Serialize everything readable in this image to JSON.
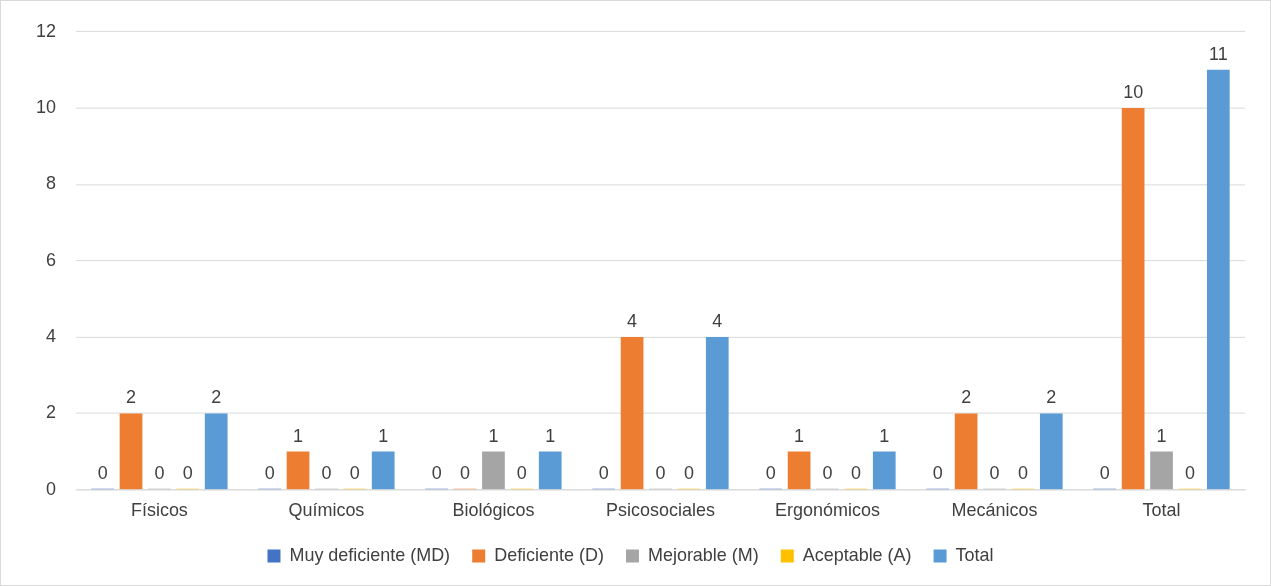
{
  "chart_data": {
    "type": "bar",
    "categories": [
      "Físicos",
      "Químicos",
      "Biológicos",
      "Psicosociales",
      "Ergonómicos",
      "Mecánicos",
      "Total"
    ],
    "series": [
      {
        "name": "Muy deficiente (MD)",
        "color": "#4472c4",
        "values": [
          0,
          0,
          0,
          0,
          0,
          0,
          0
        ]
      },
      {
        "name": "Deficiente (D)",
        "color": "#ed7d31",
        "values": [
          2,
          1,
          0,
          4,
          1,
          2,
          10
        ]
      },
      {
        "name": "Mejorable (M)",
        "color": "#a5a5a5",
        "values": [
          0,
          0,
          1,
          0,
          0,
          0,
          1
        ]
      },
      {
        "name": "Aceptable (A)",
        "color": "#ffc000",
        "values": [
          0,
          0,
          0,
          0,
          0,
          0,
          0
        ]
      },
      {
        "name": "Total",
        "color": "#5b9bd5",
        "values": [
          2,
          1,
          1,
          4,
          1,
          2,
          11
        ]
      }
    ],
    "ylim": [
      0,
      12
    ],
    "yticks": [
      0,
      2,
      4,
      6,
      8,
      10,
      12
    ],
    "grid": "y",
    "legend": "bottom",
    "data_labels": true
  }
}
